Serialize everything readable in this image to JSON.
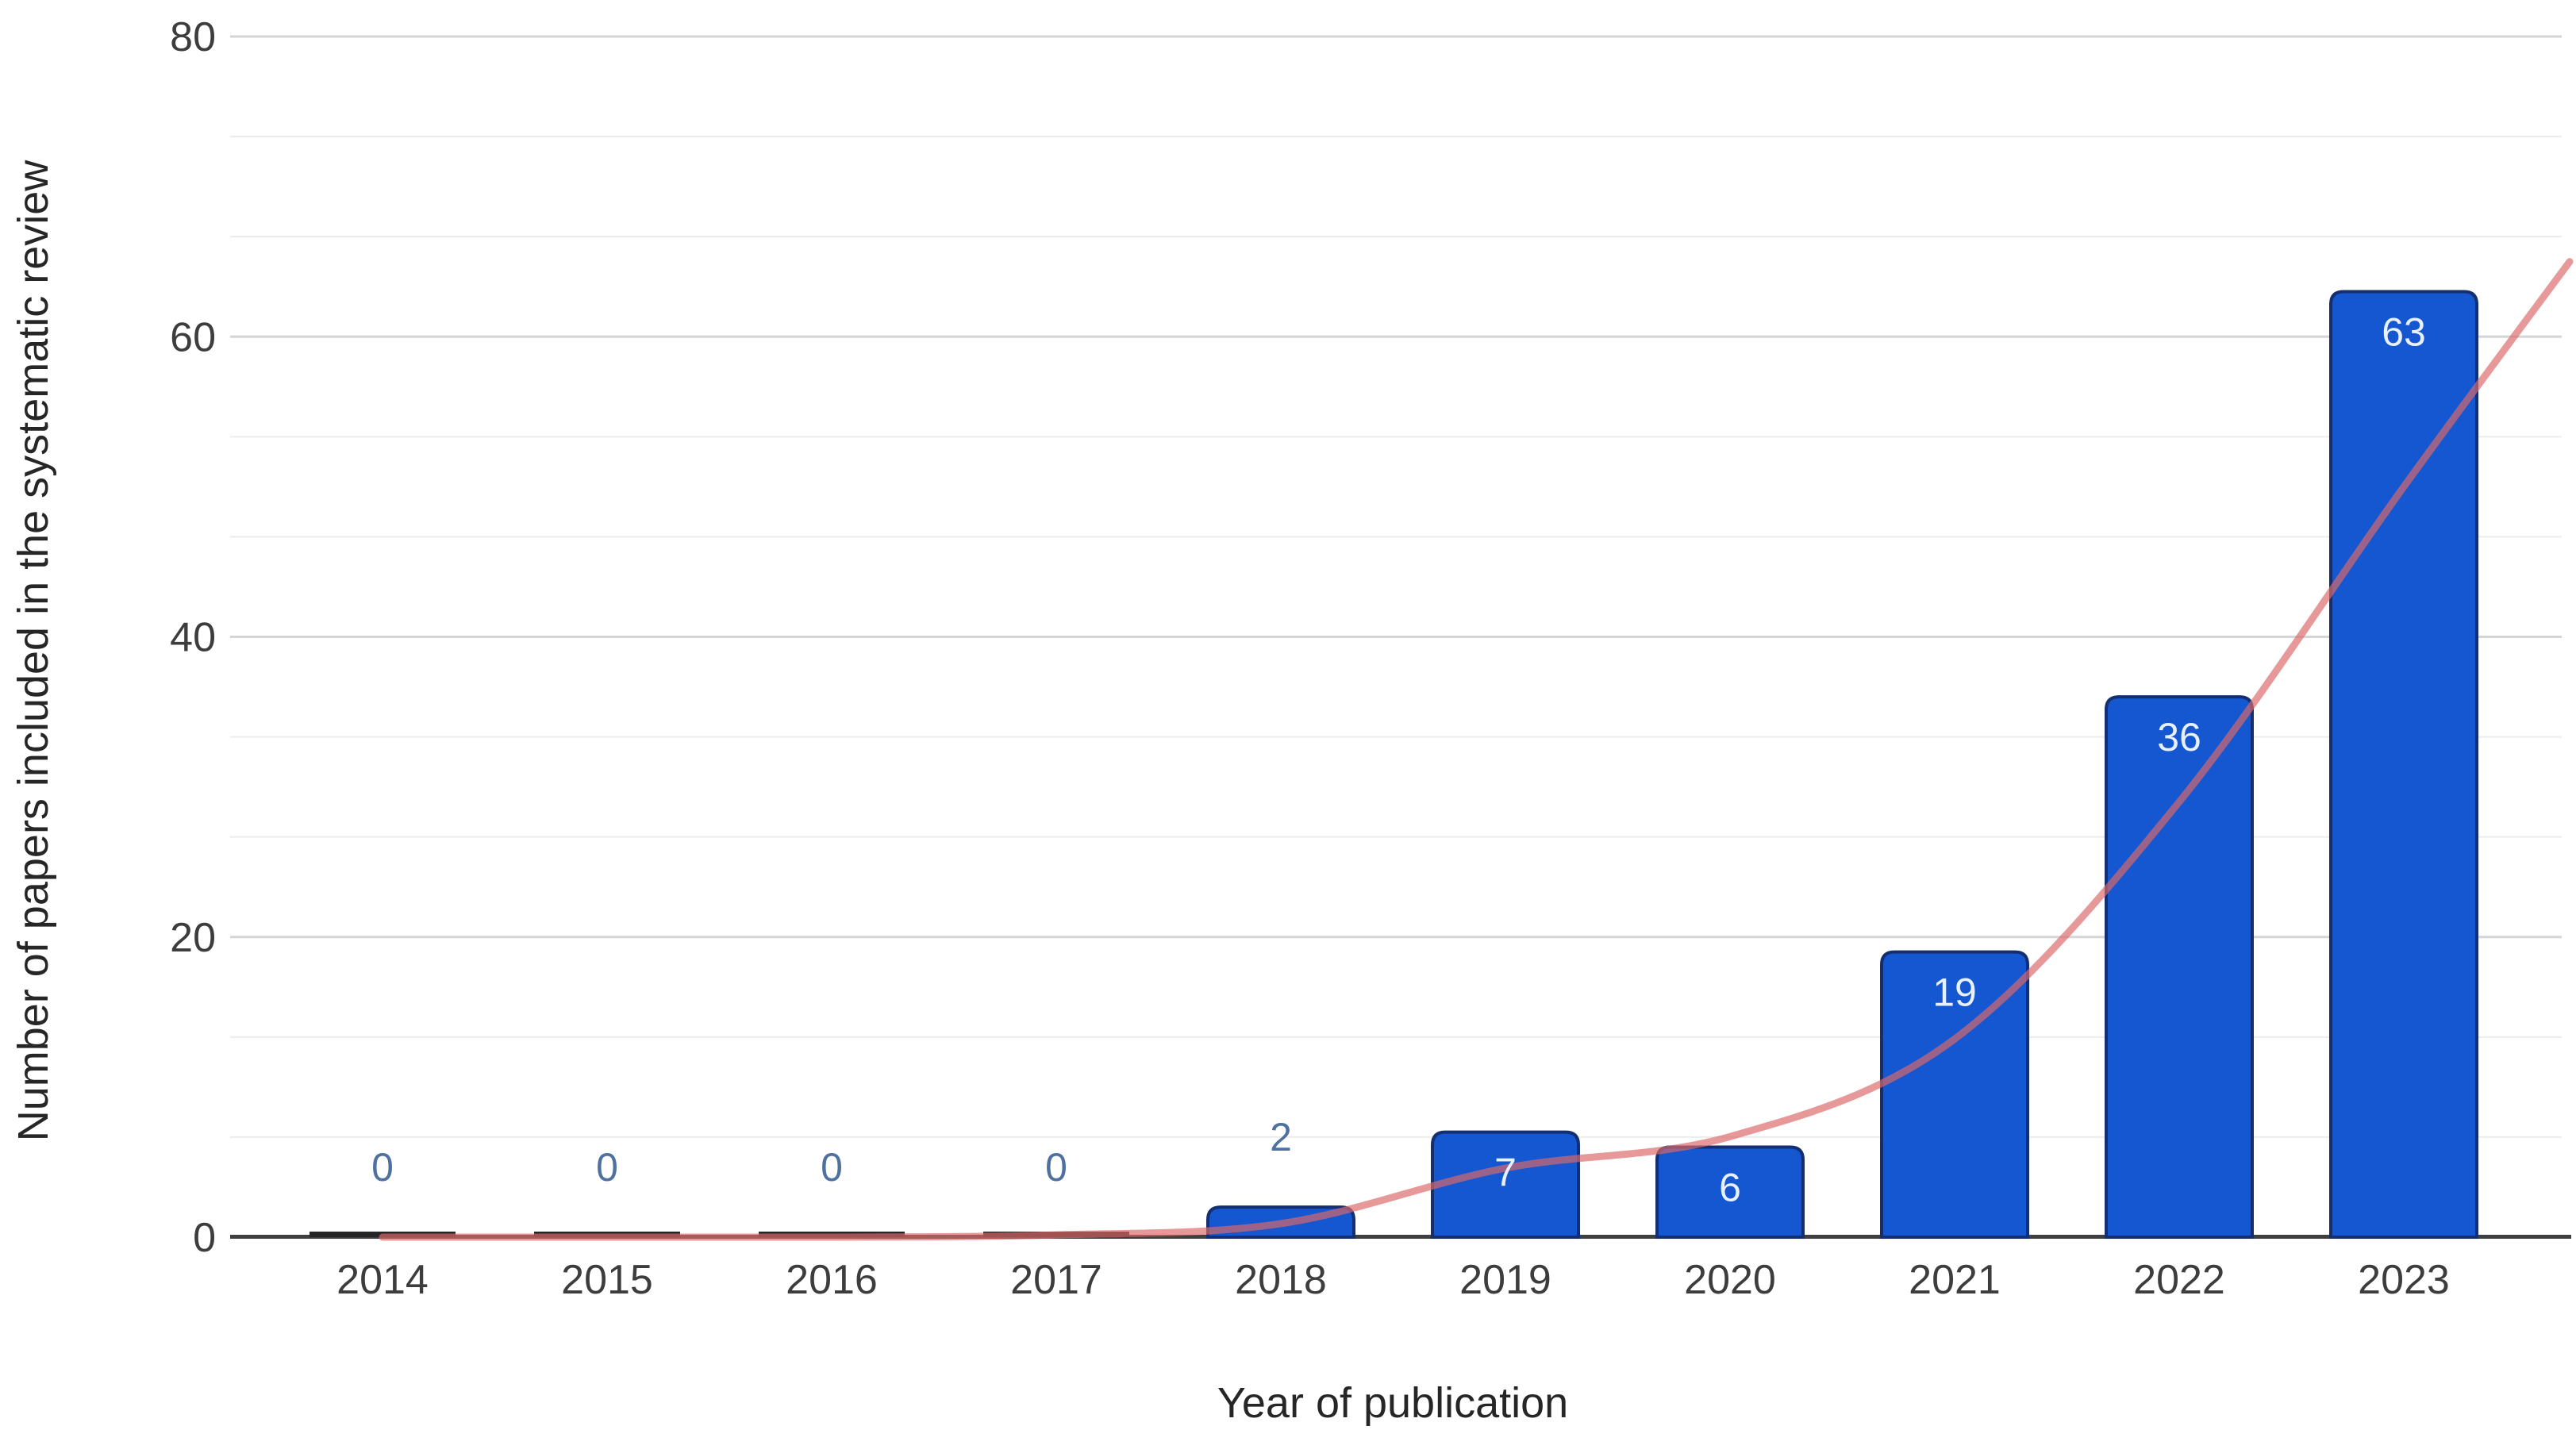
{
  "chart_data": {
    "type": "bar",
    "title": "",
    "categories": [
      "2014",
      "2015",
      "2016",
      "2017",
      "2018",
      "2019",
      "2020",
      "2021",
      "2022",
      "2023"
    ],
    "values": [
      0,
      0,
      0,
      0,
      2,
      7,
      6,
      19,
      36,
      63
    ],
    "bar_value_labels": [
      "0",
      "0",
      "0",
      "0",
      "2",
      "7",
      "6",
      "19",
      "36",
      "63"
    ],
    "xlabel": "Year of publication",
    "ylabel": "Number of papers included in the systematic review",
    "ylim": [
      0,
      80
    ],
    "y_major_ticks": [
      0,
      20,
      40,
      60,
      80
    ],
    "y_minor_tick_interval": 6.667,
    "grid": "horizontal",
    "legend": "none",
    "trendline": {
      "type": "smooth",
      "values_at_categories": [
        0,
        0,
        0,
        0.15,
        0.9,
        4.6,
        6.7,
        13.2,
        29,
        50
      ],
      "extends_past_last_category": true,
      "end_value": 65
    },
    "colors": {
      "bar_fill": "#1457d0",
      "bar_edge": "#132f72",
      "zero_bar": "#262626",
      "trendline": "#dc6868",
      "label_inside": "#e8f0fe",
      "label_outside": "#4e719f",
      "axis_line": "#3f3f3f",
      "grid_major": "#d5d5d5",
      "grid_minor": "#ececec",
      "tick_text": "#3d3d3d",
      "title_text": "#262626",
      "background": "#ffffff"
    }
  }
}
